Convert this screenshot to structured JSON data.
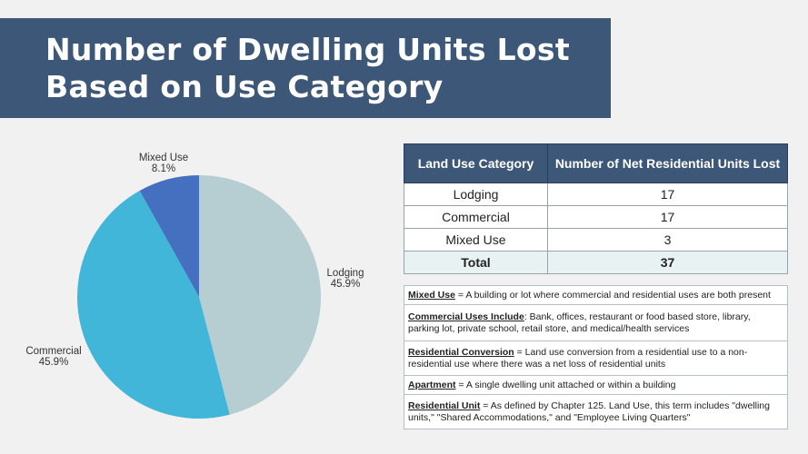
{
  "header": {
    "title_line1": "Number of Dwelling Units Lost",
    "title_line2": "Based on Use Category"
  },
  "chart_data": {
    "type": "pie",
    "slices": [
      {
        "label": "Lodging",
        "value": 45.9,
        "pct_label": "45.9%",
        "color": "#b6cdd2"
      },
      {
        "label": "Commercial",
        "value": 45.9,
        "pct_label": "45.9%",
        "color": "#41b6d8"
      },
      {
        "label": "Mixed Use",
        "value": 8.1,
        "pct_label": "8.1%",
        "color": "#4470bf"
      }
    ],
    "start_angle_deg": 0,
    "direction": "clockwise"
  },
  "table": {
    "headers": [
      "Land Use Category",
      "Number of Net Residential Units Lost"
    ],
    "rows": [
      [
        "Lodging",
        "17"
      ],
      [
        "Commercial",
        "17"
      ],
      [
        "Mixed Use",
        "3"
      ]
    ],
    "total": [
      "Total",
      "37"
    ]
  },
  "definitions": [
    {
      "term": "Mixed Use",
      "text": " = A building or lot where commercial and residential uses are both present"
    },
    {
      "term": "Commercial Uses Include",
      "text": ": Bank, offices, restaurant or food based store, library, parking lot, private school, retail store, and medical/health services"
    },
    {
      "term": "Residential Conversion",
      "text": " = Land use conversion from a residential use to a non-residential use where there was a net loss of residential units"
    },
    {
      "term": "Apartment",
      "text": " = A single dwelling unit attached or within a building"
    },
    {
      "term": "Residential Unit",
      "text": " = As defined by Chapter 125. Land Use, this term includes \"dwelling units,\" \"Shared Accommodations,\" and \"Employee Living Quarters\""
    }
  ]
}
